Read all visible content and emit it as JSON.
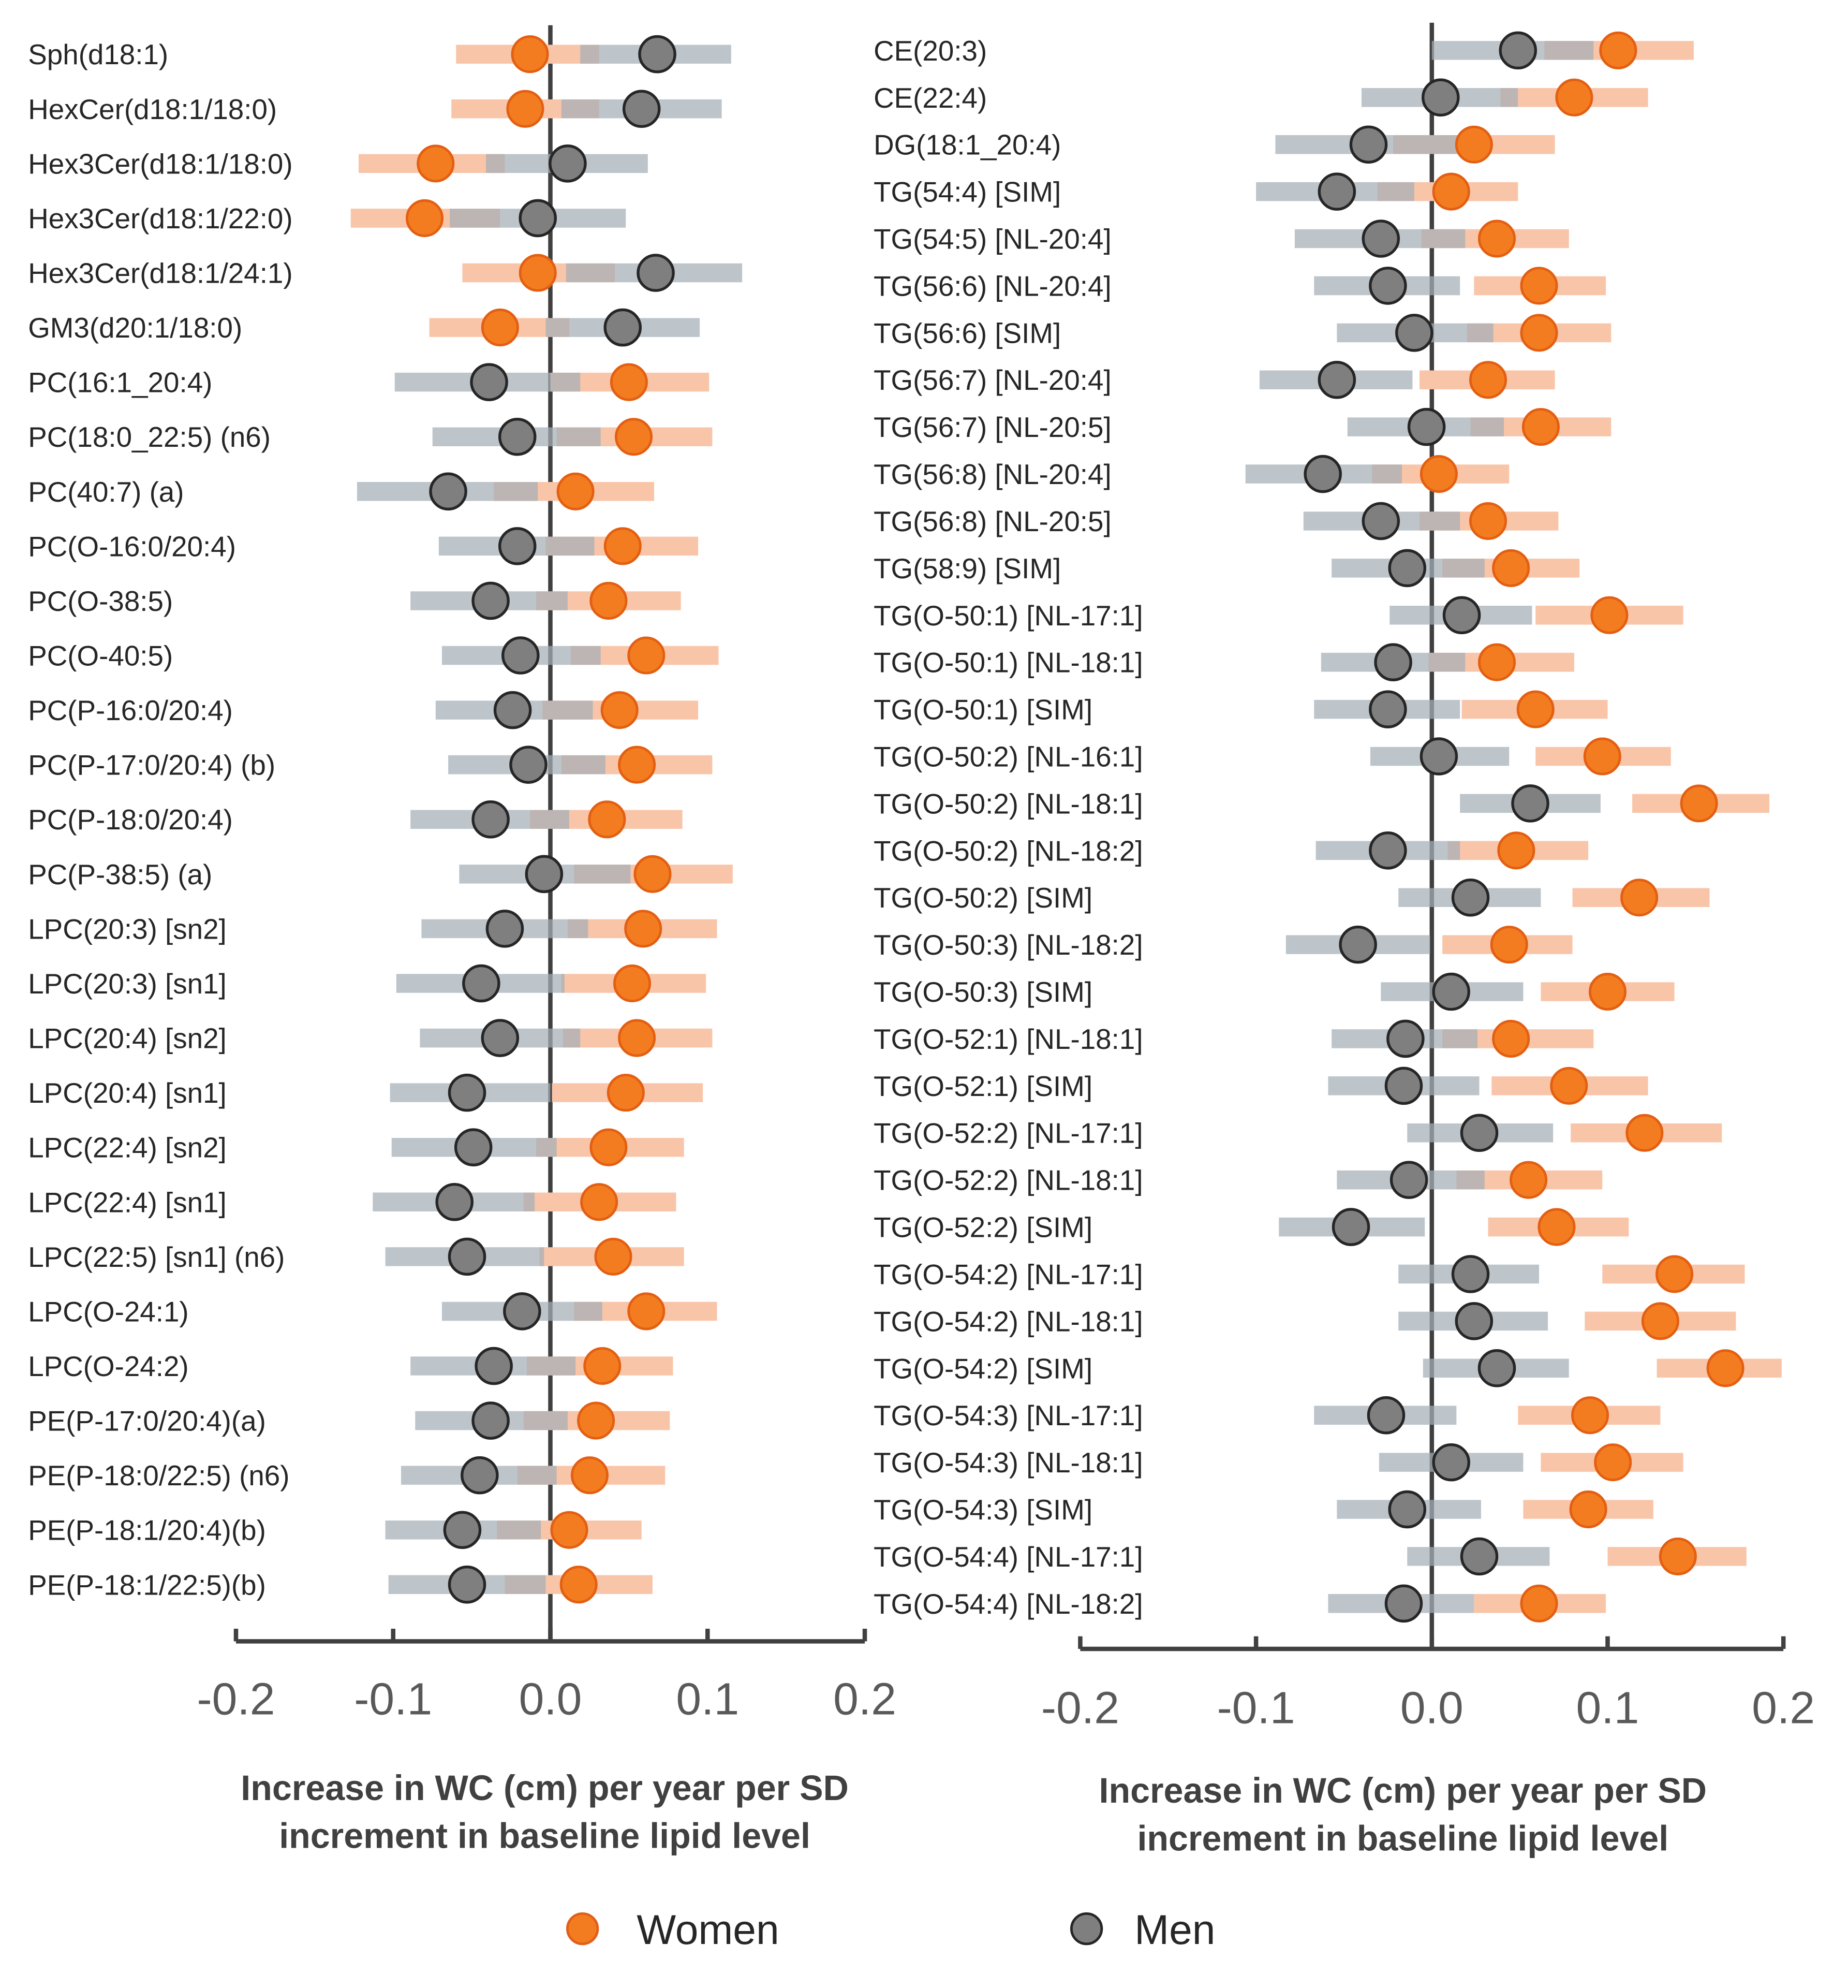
{
  "chart_data": [
    {
      "type": "forest",
      "panel": "left",
      "xlabel_line1": "Increase in WC (cm) per year per SD",
      "xlabel_line2": "increment in baseline lipid level",
      "xlim": [
        -0.2,
        0.2
      ],
      "xticks": [
        -0.2,
        -0.1,
        0.0,
        0.1,
        0.2
      ],
      "xtick_labels": [
        "-0.2",
        "-0.1",
        "0.0",
        "0.1",
        "0.2"
      ],
      "value_format": "[estimate, ci_low, ci_high]",
      "rows": [
        {
          "label": "Sph(d18:1)",
          "women": [
            -0.013,
            -0.06,
            0.031
          ],
          "men": [
            0.068,
            0.019,
            0.115
          ]
        },
        {
          "label": "HexCer(d18:1/18:0)",
          "women": [
            -0.016,
            -0.063,
            0.031
          ],
          "men": [
            0.058,
            0.007,
            0.109
          ]
        },
        {
          "label": "Hex3Cer(d18:1/18:0)",
          "women": [
            -0.073,
            -0.122,
            -0.029
          ],
          "men": [
            0.011,
            -0.041,
            0.062
          ]
        },
        {
          "label": "Hex3Cer(d18:1/22:0)",
          "women": [
            -0.08,
            -0.127,
            -0.032
          ],
          "men": [
            -0.008,
            -0.064,
            0.048
          ]
        },
        {
          "label": "Hex3Cer(d18:1/24:1)",
          "women": [
            -0.008,
            -0.056,
            0.041
          ],
          "men": [
            0.067,
            0.01,
            0.122
          ]
        },
        {
          "label": "GM3(d20:1/18:0)",
          "women": [
            -0.032,
            -0.077,
            0.012
          ],
          "men": [
            0.046,
            -0.003,
            0.095
          ]
        },
        {
          "label": "PC(16:1_20:4)",
          "women": [
            0.05,
            0.0,
            0.101
          ],
          "men": [
            -0.039,
            -0.099,
            0.019
          ]
        },
        {
          "label": "PC(18:0_22:5) (n6)",
          "women": [
            0.053,
            0.004,
            0.103
          ],
          "men": [
            -0.021,
            -0.075,
            0.032
          ]
        },
        {
          "label": "PC(40:7) (a)",
          "women": [
            0.016,
            -0.036,
            0.066
          ],
          "men": [
            -0.065,
            -0.123,
            -0.008
          ]
        },
        {
          "label": "PC(O-16:0/20:4)",
          "women": [
            0.046,
            -0.003,
            0.094
          ],
          "men": [
            -0.021,
            -0.071,
            0.028
          ]
        },
        {
          "label": "PC(O-38:5)",
          "women": [
            0.037,
            -0.009,
            0.083
          ],
          "men": [
            -0.038,
            -0.089,
            0.011
          ]
        },
        {
          "label": "PC(O-40:5)",
          "women": [
            0.061,
            0.013,
            0.107
          ],
          "men": [
            -0.019,
            -0.069,
            0.032
          ]
        },
        {
          "label": "PC(P-16:0/20:4)",
          "women": [
            0.044,
            -0.005,
            0.094
          ],
          "men": [
            -0.024,
            -0.073,
            0.027
          ]
        },
        {
          "label": "PC(P-17:0/20:4) (b)",
          "women": [
            0.055,
            0.007,
            0.103
          ],
          "men": [
            -0.014,
            -0.065,
            0.035
          ]
        },
        {
          "label": "PC(P-18:0/20:4)",
          "women": [
            0.036,
            -0.013,
            0.084
          ],
          "men": [
            -0.038,
            -0.089,
            0.012
          ]
        },
        {
          "label": "PC(P-38:5) (a)",
          "women": [
            0.065,
            0.015,
            0.116
          ],
          "men": [
            -0.004,
            -0.058,
            0.051
          ]
        },
        {
          "label": "LPC(20:3) [sn2]",
          "women": [
            0.059,
            0.011,
            0.106
          ],
          "men": [
            -0.029,
            -0.082,
            0.024
          ]
        },
        {
          "label": "LPC(20:3) [sn1]",
          "women": [
            0.052,
            0.007,
            0.099
          ],
          "men": [
            -0.044,
            -0.098,
            0.009
          ]
        },
        {
          "label": "LPC(20:4) [sn2]",
          "women": [
            0.055,
            0.008,
            0.103
          ],
          "men": [
            -0.032,
            -0.083,
            0.019
          ]
        },
        {
          "label": "LPC(20:4) [sn1]",
          "women": [
            0.048,
            0.001,
            0.097
          ],
          "men": [
            -0.053,
            -0.102,
            0.0
          ]
        },
        {
          "label": "LPC(22:4) [sn2]",
          "women": [
            0.037,
            -0.009,
            0.085
          ],
          "men": [
            -0.049,
            -0.101,
            0.004
          ]
        },
        {
          "label": "LPC(22:4) [sn1]",
          "women": [
            0.031,
            -0.017,
            0.08
          ],
          "men": [
            -0.061,
            -0.113,
            -0.01
          ]
        },
        {
          "label": "LPC(22:5) [sn1] (n6)",
          "women": [
            0.04,
            -0.007,
            0.085
          ],
          "men": [
            -0.053,
            -0.105,
            -0.004
          ]
        },
        {
          "label": "LPC(O-24:1)",
          "women": [
            0.061,
            0.015,
            0.106
          ],
          "men": [
            -0.018,
            -0.069,
            0.033
          ]
        },
        {
          "label": "LPC(O-24:2)",
          "women": [
            0.033,
            -0.015,
            0.078
          ],
          "men": [
            -0.036,
            -0.089,
            0.016
          ]
        },
        {
          "label": "PE(P-17:0/20:4)(a)",
          "women": [
            0.029,
            -0.017,
            0.076
          ],
          "men": [
            -0.038,
            -0.086,
            0.011
          ]
        },
        {
          "label": "PE(P-18:0/22:5) (n6)",
          "women": [
            0.025,
            -0.021,
            0.073
          ],
          "men": [
            -0.045,
            -0.095,
            0.004
          ]
        },
        {
          "label": "PE(P-18:1/20:4)(b)",
          "women": [
            0.012,
            -0.034,
            0.058
          ],
          "men": [
            -0.056,
            -0.105,
            -0.006
          ]
        },
        {
          "label": "PE(P-18:1/22:5)(b)",
          "women": [
            0.018,
            -0.029,
            0.065
          ],
          "men": [
            -0.053,
            -0.103,
            -0.003
          ]
        }
      ]
    },
    {
      "type": "forest",
      "panel": "right",
      "xlabel_line1": "Increase in WC (cm) per year per SD",
      "xlabel_line2": "increment in baseline lipid level",
      "xlim": [
        -0.2,
        0.2
      ],
      "xticks": [
        -0.2,
        -0.1,
        0.0,
        0.1,
        0.2
      ],
      "xtick_labels": [
        "-0.2",
        "-0.1",
        "0.0",
        "0.1",
        "0.2"
      ],
      "value_format": "[estimate, ci_low, ci_high]",
      "rows": [
        {
          "label": "CE(20:3)",
          "women": [
            0.106,
            0.064,
            0.149
          ],
          "men": [
            0.049,
            0.0,
            0.092
          ]
        },
        {
          "label": "CE(22:4)",
          "women": [
            0.081,
            0.039,
            0.123
          ],
          "men": [
            0.005,
            -0.04,
            0.049
          ]
        },
        {
          "label": "DG(18:1_20:4)",
          "women": [
            0.024,
            -0.022,
            0.07
          ],
          "men": [
            -0.036,
            -0.089,
            0.016
          ]
        },
        {
          "label": "TG(54:4) [SIM]",
          "women": [
            0.011,
            -0.031,
            0.049
          ],
          "men": [
            -0.054,
            -0.1,
            -0.01
          ]
        },
        {
          "label": "TG(54:5) [NL-20:4]",
          "women": [
            0.037,
            -0.006,
            0.078
          ],
          "men": [
            -0.029,
            -0.078,
            0.019
          ]
        },
        {
          "label": "TG(56:6) [NL-20:4]",
          "women": [
            0.061,
            0.024,
            0.099
          ],
          "men": [
            -0.025,
            -0.067,
            0.016
          ]
        },
        {
          "label": "TG(56:6) [SIM]",
          "women": [
            0.061,
            0.02,
            0.102
          ],
          "men": [
            -0.01,
            -0.054,
            0.035
          ]
        },
        {
          "label": "TG(56:7) [NL-20:4]",
          "women": [
            0.032,
            -0.007,
            0.07
          ],
          "men": [
            -0.054,
            -0.098,
            -0.011
          ]
        },
        {
          "label": "TG(56:7) [NL-20:5]",
          "women": [
            0.062,
            0.022,
            0.102
          ],
          "men": [
            -0.003,
            -0.048,
            0.041
          ]
        },
        {
          "label": "TG(56:8) [NL-20:4]",
          "women": [
            0.004,
            -0.034,
            0.044
          ],
          "men": [
            -0.062,
            -0.106,
            -0.017
          ]
        },
        {
          "label": "TG(56:8) [NL-20:5]",
          "women": [
            0.032,
            -0.007,
            0.072
          ],
          "men": [
            -0.029,
            -0.073,
            0.016
          ]
        },
        {
          "label": "TG(58:9) [SIM]",
          "women": [
            0.045,
            0.006,
            0.084
          ],
          "men": [
            -0.014,
            -0.057,
            0.03
          ]
        },
        {
          "label": "TG(O-50:1) [NL-17:1]",
          "women": [
            0.101,
            0.059,
            0.143
          ],
          "men": [
            0.017,
            -0.024,
            0.057
          ]
        },
        {
          "label": "TG(O-50:1) [NL-18:1]",
          "women": [
            0.037,
            -0.002,
            0.081
          ],
          "men": [
            -0.022,
            -0.063,
            0.019
          ]
        },
        {
          "label": "TG(O-50:1) [SIM]",
          "women": [
            0.059,
            0.017,
            0.1
          ],
          "men": [
            -0.025,
            -0.067,
            0.016
          ]
        },
        {
          "label": "TG(O-50:2) [NL-16:1]",
          "women": [
            0.097,
            0.059,
            0.136
          ],
          "men": [
            0.004,
            -0.035,
            0.044
          ]
        },
        {
          "label": "TG(O-50:2) [NL-18:1]",
          "women": [
            0.152,
            0.114,
            0.192
          ],
          "men": [
            0.056,
            0.016,
            0.096
          ]
        },
        {
          "label": "TG(O-50:2) [NL-18:2]",
          "women": [
            0.048,
            0.009,
            0.089
          ],
          "men": [
            -0.025,
            -0.066,
            0.016
          ]
        },
        {
          "label": "TG(O-50:2) [SIM]",
          "women": [
            0.118,
            0.08,
            0.158
          ],
          "men": [
            0.022,
            -0.019,
            0.062
          ]
        },
        {
          "label": "TG(O-50:3) [NL-18:2]",
          "women": [
            0.044,
            0.006,
            0.08
          ],
          "men": [
            -0.042,
            -0.083,
            -0.001
          ]
        },
        {
          "label": "TG(O-50:3) [SIM]",
          "women": [
            0.1,
            0.062,
            0.138
          ],
          "men": [
            0.011,
            -0.029,
            0.052
          ]
        },
        {
          "label": "TG(O-52:1) [NL-18:1]",
          "women": [
            0.045,
            0.006,
            0.092
          ],
          "men": [
            -0.015,
            -0.057,
            0.026
          ]
        },
        {
          "label": "TG(O-52:1) [SIM]",
          "women": [
            0.078,
            0.034,
            0.123
          ],
          "men": [
            -0.016,
            -0.059,
            0.027
          ]
        },
        {
          "label": "TG(O-52:2) [NL-17:1]",
          "women": [
            0.121,
            0.079,
            0.165
          ],
          "men": [
            0.027,
            -0.014,
            0.069
          ]
        },
        {
          "label": "TG(O-52:2) [NL-18:1]",
          "women": [
            0.055,
            0.014,
            0.097
          ],
          "men": [
            -0.013,
            -0.054,
            0.03
          ]
        },
        {
          "label": "TG(O-52:2) [SIM]",
          "women": [
            0.071,
            0.032,
            0.112
          ],
          "men": [
            -0.046,
            -0.087,
            -0.004
          ]
        },
        {
          "label": "TG(O-54:2) [NL-17:1]",
          "women": [
            0.138,
            0.097,
            0.178
          ],
          "men": [
            0.022,
            -0.019,
            0.061
          ]
        },
        {
          "label": "TG(O-54:2) [NL-18:1]",
          "women": [
            0.13,
            0.087,
            0.173
          ],
          "men": [
            0.024,
            -0.019,
            0.066
          ]
        },
        {
          "label": "TG(O-54:2) [SIM]",
          "women": [
            0.167,
            0.128,
            0.199
          ],
          "men": [
            0.037,
            -0.005,
            0.078
          ]
        },
        {
          "label": "TG(O-54:3) [NL-17:1]",
          "women": [
            0.09,
            0.049,
            0.13
          ],
          "men": [
            -0.026,
            -0.067,
            0.014
          ]
        },
        {
          "label": "TG(O-54:3) [NL-18:1]",
          "women": [
            0.103,
            0.062,
            0.143
          ],
          "men": [
            0.011,
            -0.03,
            0.052
          ]
        },
        {
          "label": "TG(O-54:3) [SIM]",
          "women": [
            0.089,
            0.052,
            0.126
          ],
          "men": [
            -0.014,
            -0.054,
            0.028
          ]
        },
        {
          "label": "TG(O-54:4) [NL-17:1]",
          "women": [
            0.14,
            0.1,
            0.179
          ],
          "men": [
            0.027,
            -0.014,
            0.067
          ]
        },
        {
          "label": "TG(O-54:4) [NL-18:2]",
          "women": [
            0.061,
            0.024,
            0.099
          ],
          "men": [
            -0.016,
            -0.059,
            0.024
          ]
        }
      ]
    }
  ],
  "legend": {
    "placement": "bottom",
    "items": [
      {
        "key": "women",
        "label": "Women",
        "color": "#f47c20",
        "ci_color": "#f9c5a9"
      },
      {
        "key": "men",
        "label": "Men",
        "color": "#7f7f7f",
        "ci_color": "#a4aeb7"
      }
    ]
  }
}
